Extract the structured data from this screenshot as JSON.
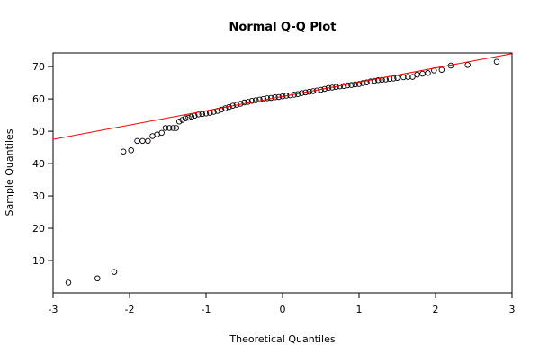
{
  "chart_data": {
    "type": "scatter",
    "title": "Normal Q-Q Plot",
    "x_label": "Theoretical Quantiles",
    "y_label": "Sample Quantiles",
    "xlim": [
      -3,
      3
    ],
    "ylim": [
      0,
      74.2
    ],
    "xticks": [
      -3,
      -2,
      -1,
      0,
      1,
      2,
      3
    ],
    "yticks": [
      10,
      20,
      30,
      40,
      50,
      60,
      70
    ],
    "series": [
      {
        "color": "#000000",
        "x": [
          -2.8,
          -2.42,
          -2.2,
          -2.08,
          -1.98,
          -1.9,
          -1.83,
          -1.76,
          -1.7,
          -1.64,
          -1.58,
          -1.53,
          -1.48,
          -1.43,
          -1.39,
          -1.35,
          -1.31,
          -1.27,
          -1.23,
          -1.19,
          -1.15,
          -1.1,
          -1.05,
          -1.0,
          -0.95,
          -0.9,
          -0.85,
          -0.8,
          -0.75,
          -0.7,
          -0.65,
          -0.6,
          -0.55,
          -0.5,
          -0.45,
          -0.4,
          -0.35,
          -0.3,
          -0.25,
          -0.2,
          -0.15,
          -0.1,
          -0.05,
          0,
          0.05,
          0.1,
          0.15,
          0.2,
          0.25,
          0.3,
          0.35,
          0.4,
          0.45,
          0.5,
          0.55,
          0.6,
          0.65,
          0.7,
          0.75,
          0.8,
          0.85,
          0.9,
          0.95,
          1.0,
          1.05,
          1.1,
          1.15,
          1.2,
          1.25,
          1.3,
          1.35,
          1.4,
          1.45,
          1.5,
          1.58,
          1.64,
          1.7,
          1.76,
          1.83,
          1.9,
          1.98,
          2.08,
          2.2,
          2.42,
          2.8
        ],
        "values": [
          3.2,
          4.5,
          6.5,
          43.7,
          44.1,
          47,
          47,
          47,
          48.5,
          49,
          49.5,
          51,
          51,
          51,
          51,
          53,
          53.5,
          54,
          54.2,
          54.5,
          54.8,
          55.2,
          55.3,
          55.5,
          55.7,
          56.0,
          56.3,
          56.7,
          57.1,
          57.5,
          57.9,
          58.2,
          58.5,
          58.9,
          59.1,
          59.4,
          59.6,
          59.8,
          60.0,
          60.2,
          60.3,
          60.5,
          60.6,
          60.8,
          61.0,
          61.1,
          61.3,
          61.5,
          61.8,
          62.0,
          62.2,
          62.4,
          62.6,
          62.8,
          63.1,
          63.4,
          63.5,
          63.7,
          63.9,
          64.0,
          64.2,
          64.3,
          64.5,
          64.6,
          64.9,
          65.1,
          65.4,
          65.6,
          65.8,
          65.9,
          66.0,
          66.2,
          66.3,
          66.5,
          66.7,
          66.8,
          66.8,
          67.5,
          67.8,
          68,
          68.8,
          69,
          70.3,
          70.5,
          71.5
        ]
      }
    ],
    "reference_line": {
      "color": "#ff0000",
      "x": [
        -3,
        3
      ],
      "values": [
        47.5,
        74
      ]
    }
  }
}
